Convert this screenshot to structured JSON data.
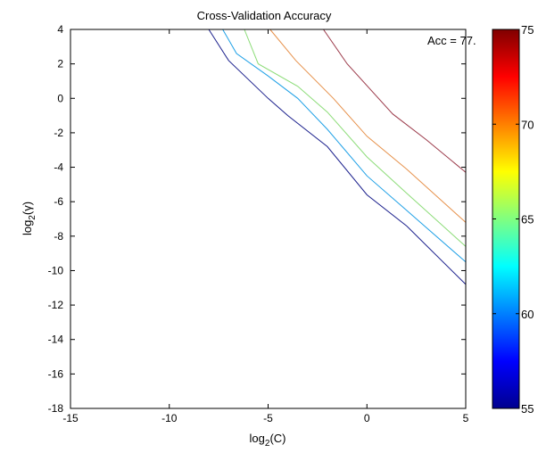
{
  "chart_data": {
    "type": "contour",
    "title": "Cross-Validation Accuracy",
    "xlabel": {
      "base": "log",
      "sub": "2",
      "rest": "(C)"
    },
    "ylabel": {
      "base": "log",
      "sub": "2",
      "rest": "(γ)"
    },
    "xlim": [
      -15,
      5
    ],
    "ylim": [
      -18,
      4
    ],
    "xticks": [
      -15,
      -10,
      -5,
      0,
      5
    ],
    "yticks": [
      -18,
      -16,
      -14,
      -12,
      -10,
      -8,
      -6,
      -4,
      -2,
      0,
      2,
      4
    ],
    "annotation": "Acc = 77.",
    "colorbar": {
      "colormap": "jet",
      "range": [
        55,
        75
      ],
      "ticks": [
        "55",
        "60",
        "65",
        "70",
        "75"
      ]
    },
    "series": [
      {
        "color": "#1a1f8c",
        "points": [
          [
            -8,
            4
          ],
          [
            -7,
            2.2
          ],
          [
            -5,
            0
          ],
          [
            -4,
            -1
          ],
          [
            -2,
            -2.8
          ],
          [
            0,
            -5.6
          ],
          [
            2,
            -7.4
          ],
          [
            5,
            -10.8
          ]
        ]
      },
      {
        "color": "#1ea0e6",
        "points": [
          [
            -7.3,
            4
          ],
          [
            -6.6,
            2.6
          ],
          [
            -5,
            1.3
          ],
          [
            -3.5,
            0
          ],
          [
            -2,
            -1.8
          ],
          [
            0,
            -4.5
          ],
          [
            2,
            -6.5
          ],
          [
            5,
            -9.5
          ]
        ]
      },
      {
        "color": "#8cdc78",
        "points": [
          [
            -6.2,
            4
          ],
          [
            -5.5,
            2
          ],
          [
            -3.5,
            0.7
          ],
          [
            -2,
            -0.8
          ],
          [
            0,
            -3.4
          ],
          [
            2,
            -5.5
          ],
          [
            5,
            -8.6
          ]
        ]
      },
      {
        "color": "#e6914b",
        "points": [
          [
            -4.9,
            4
          ],
          [
            -3.6,
            2.2
          ],
          [
            -1.7,
            0
          ],
          [
            0,
            -2.2
          ],
          [
            2,
            -4.1
          ],
          [
            5,
            -7.2
          ]
        ]
      },
      {
        "color": "#9b3a4a",
        "points": [
          [
            -2.2,
            4
          ],
          [
            -1,
            2
          ],
          [
            1.3,
            -0.9
          ],
          [
            3,
            -2.4
          ],
          [
            5,
            -4.3
          ]
        ]
      }
    ]
  }
}
